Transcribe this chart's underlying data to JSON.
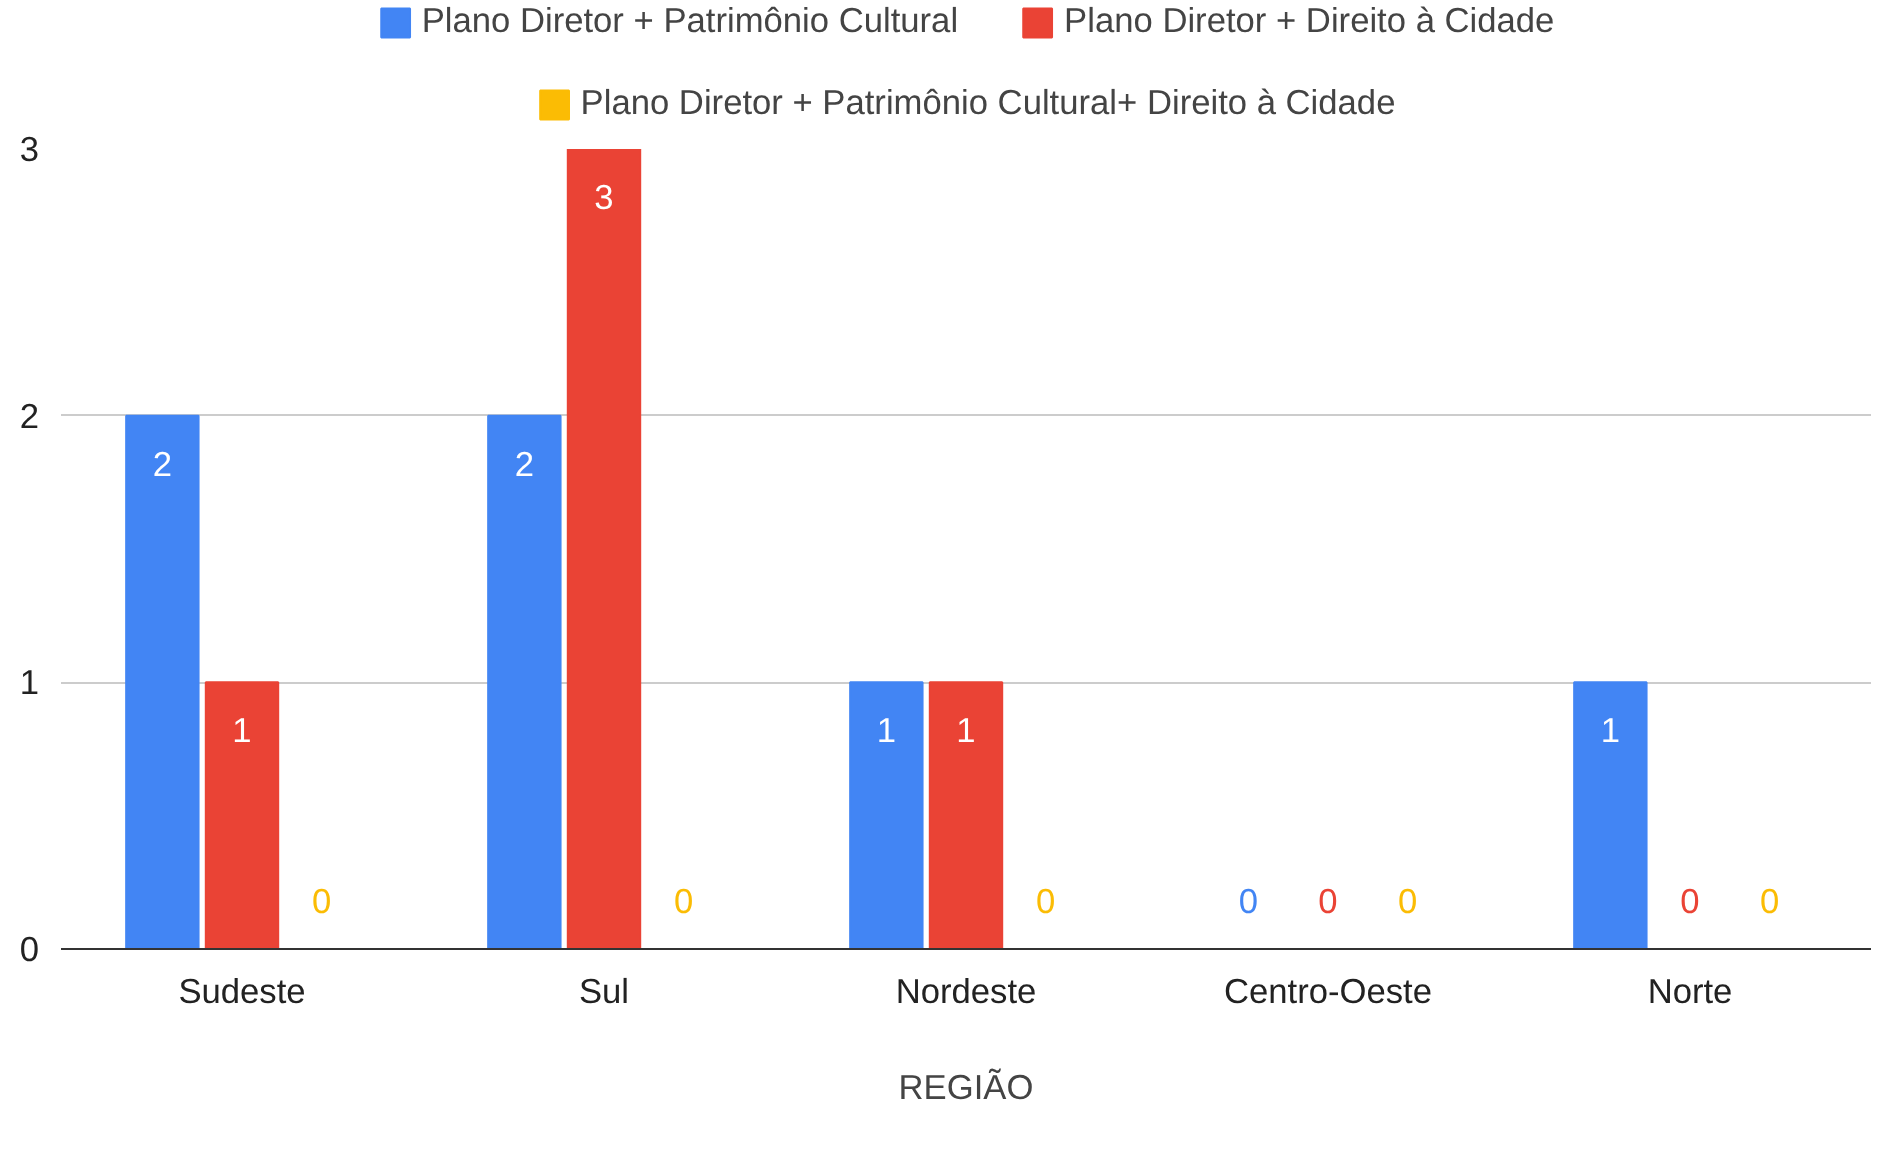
{
  "chart_data": {
    "type": "bar",
    "xlabel": "REGIÃO",
    "categories": [
      "Sudeste",
      "Sul",
      "Nordeste",
      "Centro-Oeste",
      "Norte"
    ],
    "series": [
      {
        "name": "Plano Diretor + Patrimônio Cultural",
        "color": "#4285f4",
        "values": [
          2,
          2,
          1,
          0,
          1
        ]
      },
      {
        "name": "Plano Diretor + Direito à Cidade",
        "color": "#ea4335",
        "values": [
          1,
          3,
          1,
          0,
          0
        ]
      },
      {
        "name": "Plano Diretor + Patrimônio Cultural+ Direito à Cidade",
        "color": "#fbbc04",
        "values": [
          0,
          0,
          0,
          0,
          0
        ]
      }
    ],
    "ylim": [
      0,
      3
    ],
    "yticks": [
      0,
      1,
      2,
      3
    ],
    "grid": "y",
    "legend": "top",
    "data_labels": true
  }
}
